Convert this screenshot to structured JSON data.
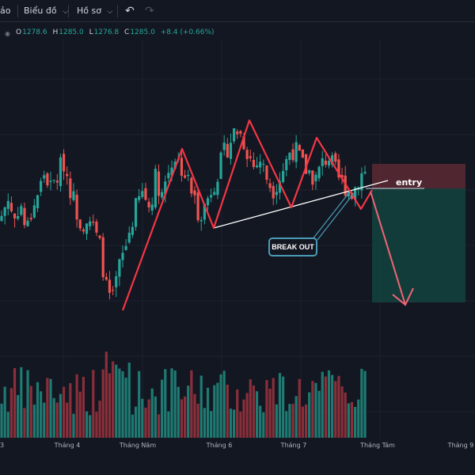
{
  "toolbar": {
    "partial_label": "ảo",
    "chart_menu": "Biểu đồ",
    "profile_menu": "Hồ sơ",
    "chevron": "⌵",
    "undo_icon": "↶",
    "redo_icon": "↷"
  },
  "ohlc": {
    "open_key": "O",
    "open": "1278.6",
    "high_key": "H",
    "high": "1285.0",
    "low_key": "L",
    "low": "1276.8",
    "close_key": "C",
    "close": "1285.0",
    "change": "+8.4 (+0.66%)"
  },
  "colors": {
    "background": "#131722",
    "up": "#26a69a",
    "down": "#ef5350",
    "pattern": "#f23645",
    "up_volume": "#1f7a72",
    "down_volume": "#8a2f3a",
    "stop_zone": "#5c2a34",
    "target_zone": "#13403d"
  },
  "annotations": {
    "entry_label": "entry",
    "breakout_label": "BREAK OUT"
  },
  "xaxis": {
    "labels": [
      "3",
      "Tháng 4",
      "Tháng Năm",
      "Tháng 6",
      "Tháng 7",
      "Tháng Tám",
      "Tháng 9"
    ]
  },
  "chart_data": {
    "type": "candlestick",
    "pattern": "head-and-shoulders with neckline break-out",
    "x_labels": [
      "3",
      "Tháng 4",
      "Tháng Năm",
      "Tháng 6",
      "Tháng 7",
      "Tháng Tám",
      "Tháng 9"
    ],
    "price_path": [
      1230,
      1245,
      1226,
      1242,
      1216,
      1236,
      1250,
      1266,
      1252,
      1262,
      1276,
      1256,
      1238,
      1222,
      1232,
      1218,
      1204,
      1170,
      1158,
      1186,
      1202,
      1222,
      1240,
      1250,
      1236,
      1262,
      1248,
      1266,
      1280,
      1272,
      1262,
      1248,
      1232,
      1238,
      1252,
      1264,
      1280,
      1290,
      1302,
      1296,
      1282,
      1270,
      1276,
      1262,
      1252,
      1260,
      1272,
      1286,
      1282,
      1270,
      1266,
      1260,
      1272,
      1280,
      1268,
      1258,
      1254,
      1248,
      1262,
      1268
    ]
  }
}
